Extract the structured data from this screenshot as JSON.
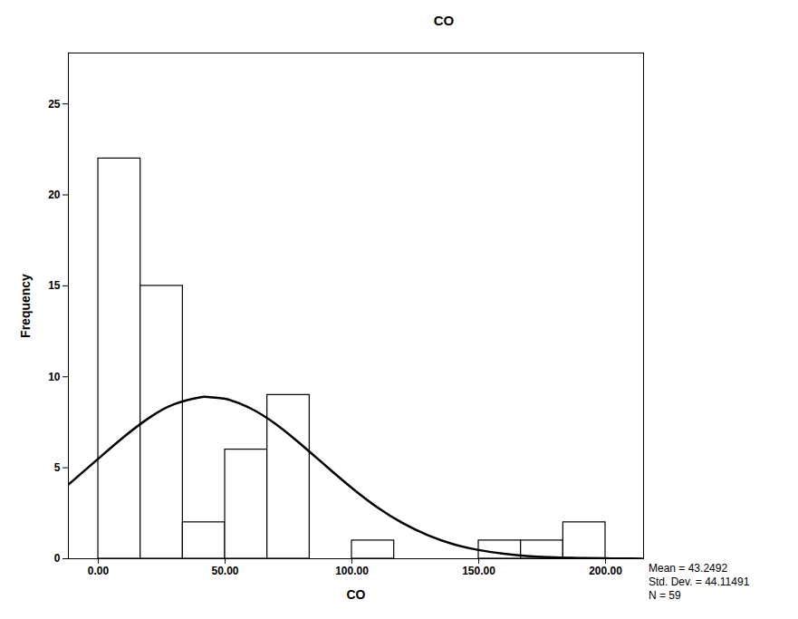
{
  "chart_data": {
    "type": "histogram",
    "title": "CO",
    "x_label": "CO",
    "y_label": "Frequency",
    "bins": [
      0,
      16.67,
      33.33,
      50,
      66.67,
      83.33,
      100,
      116.67,
      133.33,
      150,
      166.67,
      183.33,
      200
    ],
    "counts": [
      22,
      15,
      2,
      6,
      9,
      0,
      1,
      0,
      0,
      1,
      1,
      2
    ],
    "color": "#ffffff",
    "xlim": [
      -11.8,
      215
    ],
    "ylim": [
      0,
      27.8
    ],
    "xticks": [
      {
        "value": 0,
        "label": "0.00"
      },
      {
        "value": 50,
        "label": "50.00"
      },
      {
        "value": 100,
        "label": "100.00"
      },
      {
        "value": 150,
        "label": "150.00"
      },
      {
        "value": 200,
        "label": "200.00"
      }
    ],
    "yticks": [
      0,
      5,
      10,
      15,
      20,
      25
    ],
    "grid": false,
    "curve": {
      "type": "line",
      "color": "#000000",
      "x": [
        -11.8,
        -10,
        0,
        10,
        20,
        30,
        40,
        43.25,
        50,
        60,
        70,
        80,
        90,
        100,
        110,
        120,
        130,
        140,
        150,
        160,
        170,
        180,
        190,
        200,
        210,
        215
      ],
      "values": [
        4.08,
        4.29,
        5.5,
        6.69,
        7.74,
        8.5,
        8.87,
        8.89,
        8.79,
        8.27,
        7.4,
        6.28,
        5.07,
        3.89,
        2.83,
        1.96,
        1.29,
        0.8,
        0.48,
        0.27,
        0.14,
        0.07,
        0.04,
        0.02,
        0.01,
        0.0
      ]
    },
    "annotations": [
      "Mean = 43.2492",
      "Std. Dev. = 44.11491",
      "N = 59"
    ]
  }
}
